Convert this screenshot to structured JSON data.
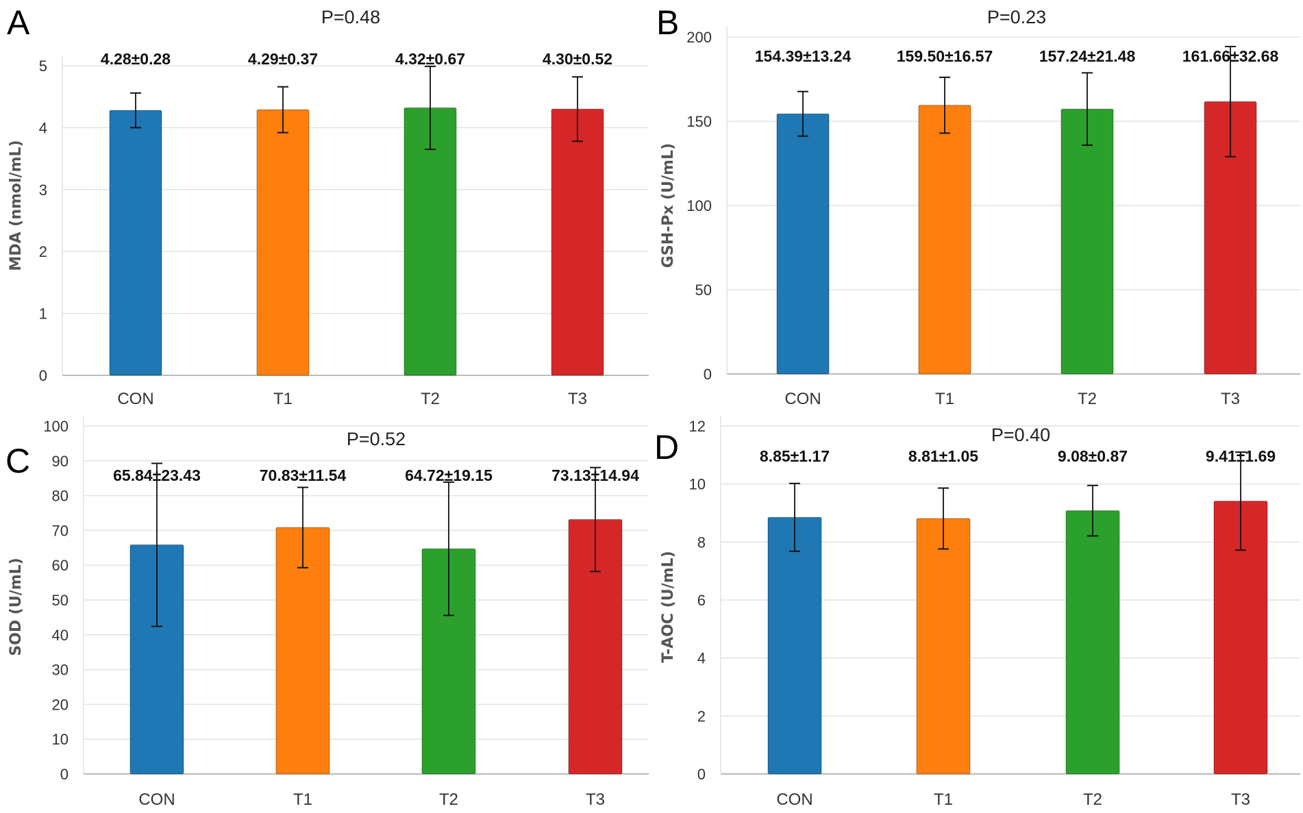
{
  "chart_data": [
    {
      "type": "bar",
      "panel": "A",
      "title": "P=0.48",
      "ylabel": "MDA (nmol/mL)",
      "categories": [
        "CON",
        "T1",
        "T2",
        "T3"
      ],
      "values": [
        4.28,
        4.29,
        4.32,
        4.3
      ],
      "errors": [
        0.28,
        0.37,
        0.67,
        0.52
      ],
      "labels": [
        "4.28±0.28",
        "4.29±0.37",
        "4.32±0.67",
        "4.30±0.52"
      ],
      "yticks": [
        0,
        1,
        2,
        3,
        4,
        5
      ],
      "ylim": [
        0,
        5
      ],
      "grid": true
    },
    {
      "type": "bar",
      "panel": "B",
      "title": "P=0.23",
      "ylabel": "GSH-Px (U/mL)",
      "categories": [
        "CON",
        "T1",
        "T2",
        "T3"
      ],
      "values": [
        154.39,
        159.5,
        157.24,
        161.66
      ],
      "errors": [
        13.24,
        16.57,
        21.48,
        32.68
      ],
      "labels": [
        "154.39±13.24",
        "159.50±16.57",
        "157.24±21.48",
        "161.66±32.68"
      ],
      "yticks": [
        0,
        50,
        100,
        150,
        200
      ],
      "ylim": [
        0,
        200
      ],
      "grid": true
    },
    {
      "type": "bar",
      "panel": "C",
      "title": "P=0.52",
      "ylabel": "SOD (U/mL)",
      "categories": [
        "CON",
        "T1",
        "T2",
        "T3"
      ],
      "values": [
        65.84,
        70.83,
        64.72,
        73.13
      ],
      "errors": [
        23.43,
        11.54,
        19.15,
        14.94
      ],
      "labels": [
        "65.84±23.43",
        "70.83±11.54",
        "64.72±19.15",
        "73.13±14.94"
      ],
      "yticks": [
        0,
        10,
        20,
        30,
        40,
        50,
        60,
        70,
        80,
        90,
        100
      ],
      "ylim": [
        0,
        100
      ],
      "grid": true
    },
    {
      "type": "bar",
      "panel": "D",
      "title": "P=0.40",
      "ylabel": "T-AOC (U/mL)",
      "categories": [
        "CON",
        "T1",
        "T2",
        "T3"
      ],
      "values": [
        8.85,
        8.81,
        9.08,
        9.41
      ],
      "errors": [
        1.17,
        1.05,
        0.87,
        1.69
      ],
      "labels": [
        "8.85±1.17",
        "8.81±1.05",
        "9.08±0.87",
        "9.41±1.69"
      ],
      "yticks": [
        0,
        2,
        4,
        6,
        8,
        10,
        12
      ],
      "ylim": [
        0,
        12
      ],
      "grid": true
    }
  ],
  "colors": [
    "#1f77b4",
    "#ff7f0e",
    "#2ca02c",
    "#d62728"
  ]
}
